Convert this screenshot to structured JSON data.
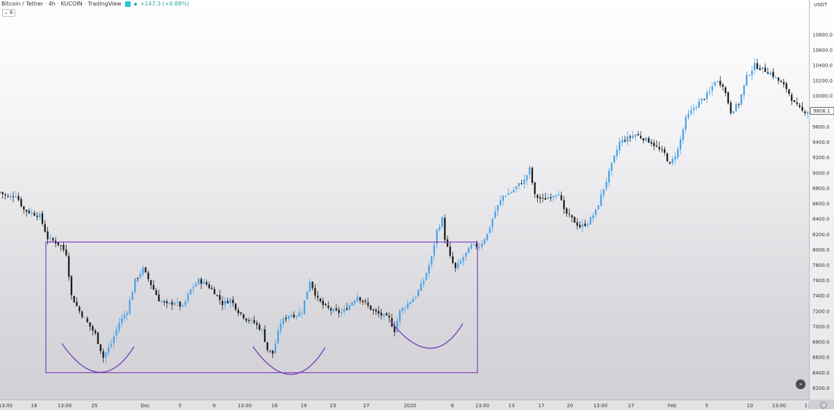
{
  "header": {
    "title": "Bitcoin / Tether · 4h · KUCOIN · TradingView",
    "change": "+147.3 (+0.88%)",
    "interval_badge": "6"
  },
  "price_axis": {
    "currency": "USDT",
    "current_price_label": "9806.1"
  },
  "colors": {
    "up": "#4aa3e8",
    "down": "#1c1c1c",
    "annotation": "#7b3fb8",
    "price_tag": "#333333"
  },
  "icons": [
    "fast-forward-icon",
    "settings-icon",
    "dropdown-arrow-icon"
  ],
  "chart_data": {
    "type": "candlestick",
    "symbol": "Bitcoin / Tether",
    "timeframe": "4h",
    "exchange": "KUCOIN",
    "ylim": [
      6050,
      11250
    ],
    "y_ticks": [
      6200,
      6400,
      6600,
      6800,
      7000,
      7200,
      7400,
      7600,
      7800,
      8000,
      8200,
      8400,
      8600,
      8800,
      9000,
      9200,
      9400,
      9600,
      9800,
      10000,
      10200,
      10400,
      10600,
      10800
    ],
    "y_tick_labels": [
      "6200.0",
      "6400.0",
      "6600.0",
      "6800.0",
      "7000.0",
      "7200.0",
      "7400.0",
      "7600.0",
      "7800.0",
      "8000.0",
      "8200.0",
      "8400.0",
      "8600.0",
      "8800.0",
      "9000.0",
      "9200.0",
      "9400.0",
      "9600.0",
      "9800.0",
      "10000.0",
      "10200.0",
      "10400.0",
      "10600.0",
      "10800.0"
    ],
    "x_tick_labels": [
      "13:00",
      "18",
      "13:00",
      "25",
      "Dec",
      "5",
      "9",
      "13:00",
      "16",
      "19",
      "23",
      "27",
      "2020",
      "6",
      "13:00",
      "13",
      "17",
      "20",
      "13:00",
      "27",
      "Feb",
      "5",
      "10",
      "13:00",
      "17"
    ],
    "price_path": [
      [
        0,
        8750
      ],
      [
        3,
        8680
      ],
      [
        6,
        8720
      ],
      [
        9,
        8520
      ],
      [
        12,
        8480
      ],
      [
        15,
        8440
      ],
      [
        18,
        8150
      ],
      [
        21,
        8100
      ],
      [
        23,
        8050
      ],
      [
        25,
        7950
      ],
      [
        27,
        7400
      ],
      [
        30,
        7200
      ],
      [
        33,
        7050
      ],
      [
        36,
        6900
      ],
      [
        39,
        6600
      ],
      [
        42,
        6780
      ],
      [
        45,
        7050
      ],
      [
        48,
        7200
      ],
      [
        51,
        7600
      ],
      [
        54,
        7750
      ],
      [
        57,
        7550
      ],
      [
        60,
        7350
      ],
      [
        63,
        7280
      ],
      [
        66,
        7320
      ],
      [
        69,
        7250
      ],
      [
        72,
        7480
      ],
      [
        75,
        7600
      ],
      [
        78,
        7550
      ],
      [
        81,
        7450
      ],
      [
        84,
        7300
      ],
      [
        87,
        7350
      ],
      [
        90,
        7200
      ],
      [
        93,
        7100
      ],
      [
        96,
        7050
      ],
      [
        99,
        6950
      ],
      [
        101,
        6700
      ],
      [
        103,
        6650
      ],
      [
        106,
        7050
      ],
      [
        109,
        7150
      ],
      [
        112,
        7150
      ],
      [
        114,
        7200
      ],
      [
        117,
        7600
      ],
      [
        120,
        7350
      ],
      [
        123,
        7250
      ],
      [
        126,
        7200
      ],
      [
        129,
        7180
      ],
      [
        132,
        7280
      ],
      [
        135,
        7400
      ],
      [
        138,
        7300
      ],
      [
        141,
        7200
      ],
      [
        144,
        7150
      ],
      [
        147,
        7100
      ],
      [
        149,
        6950
      ],
      [
        151,
        7200
      ],
      [
        154,
        7300
      ],
      [
        157,
        7400
      ],
      [
        160,
        7600
      ],
      [
        163,
        7900
      ],
      [
        165,
        8250
      ],
      [
        167,
        8400
      ],
      [
        168,
        8150
      ],
      [
        170,
        7900
      ],
      [
        172,
        7750
      ],
      [
        175,
        7900
      ],
      [
        178,
        8050
      ],
      [
        181,
        8050
      ],
      [
        184,
        8200
      ],
      [
        187,
        8500
      ],
      [
        190,
        8700
      ],
      [
        193,
        8750
      ],
      [
        196,
        8850
      ],
      [
        198,
        8900
      ],
      [
        200,
        9050
      ],
      [
        202,
        8700
      ],
      [
        205,
        8650
      ],
      [
        208,
        8700
      ],
      [
        211,
        8750
      ],
      [
        213,
        8500
      ],
      [
        216,
        8400
      ],
      [
        219,
        8300
      ],
      [
        222,
        8350
      ],
      [
        225,
        8500
      ],
      [
        228,
        8800
      ],
      [
        231,
        9100
      ],
      [
        234,
        9400
      ],
      [
        237,
        9450
      ],
      [
        240,
        9500
      ],
      [
        243,
        9450
      ],
      [
        246,
        9400
      ],
      [
        249,
        9300
      ],
      [
        251,
        9250
      ],
      [
        253,
        9100
      ],
      [
        256,
        9300
      ],
      [
        259,
        9700
      ],
      [
        262,
        9850
      ],
      [
        265,
        9950
      ],
      [
        268,
        10050
      ],
      [
        270,
        10200
      ],
      [
        273,
        10150
      ],
      [
        276,
        9800
      ],
      [
        279,
        9900
      ],
      [
        282,
        10250
      ],
      [
        285,
        10400
      ],
      [
        288,
        10350
      ],
      [
        291,
        10300
      ],
      [
        294,
        10200
      ],
      [
        297,
        10100
      ],
      [
        300,
        9900
      ],
      [
        303,
        9800
      ],
      [
        305,
        9806
      ]
    ],
    "annotations": {
      "rectangle": {
        "x_range": [
          "13:00 (Nov 22)",
          "6 (Jan)"
        ],
        "y_range": [
          6400,
          8100
        ]
      },
      "arcs": [
        {
          "x_range": [
            "13:00",
            "Dec"
          ],
          "y_range": [
            6380,
            6780
          ]
        },
        {
          "x_range": [
            "16",
            "23"
          ],
          "y_range": [
            6370,
            6740
          ]
        },
        {
          "x_range": [
            "27",
            "6"
          ],
          "y_range": [
            6700,
            7050
          ]
        }
      ]
    },
    "last_price": 9806.1,
    "grid": false,
    "legend": "none"
  }
}
